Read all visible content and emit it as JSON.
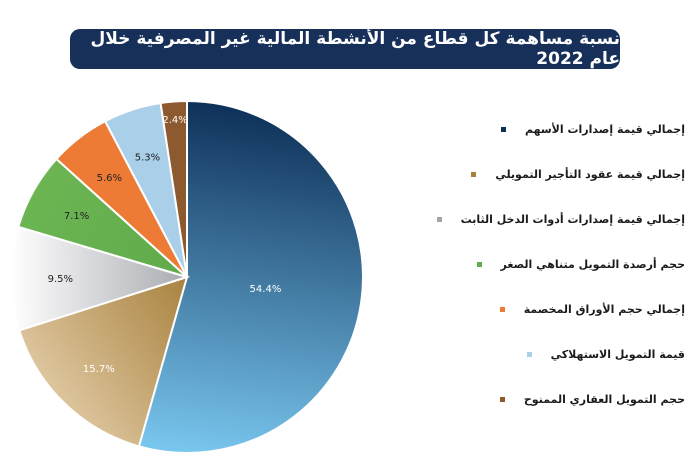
{
  "chart_data": {
    "type": "pie",
    "title": "نسبة مساهمة كل قطاع من الأنشطة المالية غير المصرفية خلال عام 2022",
    "legend_position": "right",
    "slices": [
      {
        "name": "إجمالي قيمة إصدارات الأسهم",
        "value": 54.4,
        "label": "54.4%",
        "color": "#0d2f57",
        "color_light": "#79c7ef",
        "label_color": "#ffffff"
      },
      {
        "name": "إجمالي قيمة عقود التأجير التمويلي",
        "value": 15.7,
        "label": "15.7%",
        "color": "#a7803c",
        "color_light": "#dcc49c",
        "label_color": "#ffffff"
      },
      {
        "name": "إجمالي قيمة إصدارات أدوات الدخل الثابت",
        "value": 9.5,
        "label": "9.5%",
        "color": "#a3a5ab",
        "color_light": "#ffffff",
        "label_color": "#222222"
      },
      {
        "name": "حجم أرصدة التمويل متناهي الصغر",
        "value": 7.1,
        "label": "7.1%",
        "color": "#62ac4c",
        "color_light": "#6cb553",
        "label_color": "#222222"
      },
      {
        "name": "إجمالي حجم الأوراق المخصمة",
        "value": 5.6,
        "label": "5.6%",
        "color": "#ed7b35",
        "color_light": "#ed7b35",
        "label_color": "#222222"
      },
      {
        "name": "قيمة التمويل الاستهلاكي",
        "value": 5.3,
        "label": "5.3%",
        "color": "#aacfe9",
        "color_light": "#aacfe9",
        "label_color": "#222222"
      },
      {
        "name": "حجم التمويل العقاري الممنوح",
        "value": 2.4,
        "label": "2.4%",
        "color": "#8d5a2f",
        "color_light": "#8d5a2f",
        "label_color": "#ffffff"
      }
    ]
  }
}
